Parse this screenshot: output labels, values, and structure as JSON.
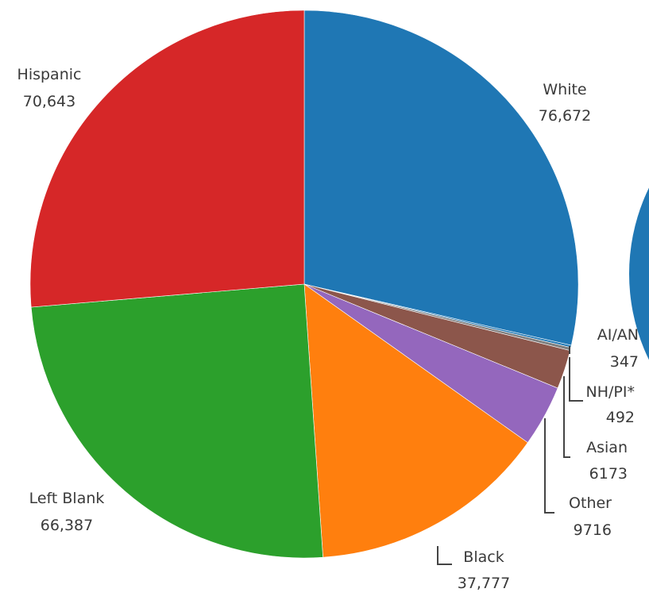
{
  "chart_data": {
    "type": "pie",
    "title": "",
    "slices": [
      {
        "label": "White",
        "value": 76672,
        "value_text": "76,672",
        "color": "#1f77b4"
      },
      {
        "label": "AI/AN",
        "value": 347,
        "value_text": "347",
        "color": "#1f77b4"
      },
      {
        "label": "NH/PI*",
        "value": 492,
        "value_text": "492",
        "color": "#7f7f7f"
      },
      {
        "label": "Asian",
        "value": 6173,
        "value_text": "6173",
        "color": "#8c564b"
      },
      {
        "label": "Other",
        "value": 9716,
        "value_text": "9716",
        "color": "#9467bd"
      },
      {
        "label": "Black",
        "value": 37777,
        "value_text": "37,777",
        "color": "#ff7f0e"
      },
      {
        "label": "Left Blank",
        "value": 66387,
        "value_text": "66,387",
        "color": "#2ca02c"
      },
      {
        "label": "Hispanic",
        "value": 70643,
        "value_text": "70,643",
        "color": "#d62728"
      }
    ],
    "start_angle": "12 o'clock",
    "direction": "clockwise",
    "partial_second_pie": {
      "color": "#1f77b4"
    }
  }
}
